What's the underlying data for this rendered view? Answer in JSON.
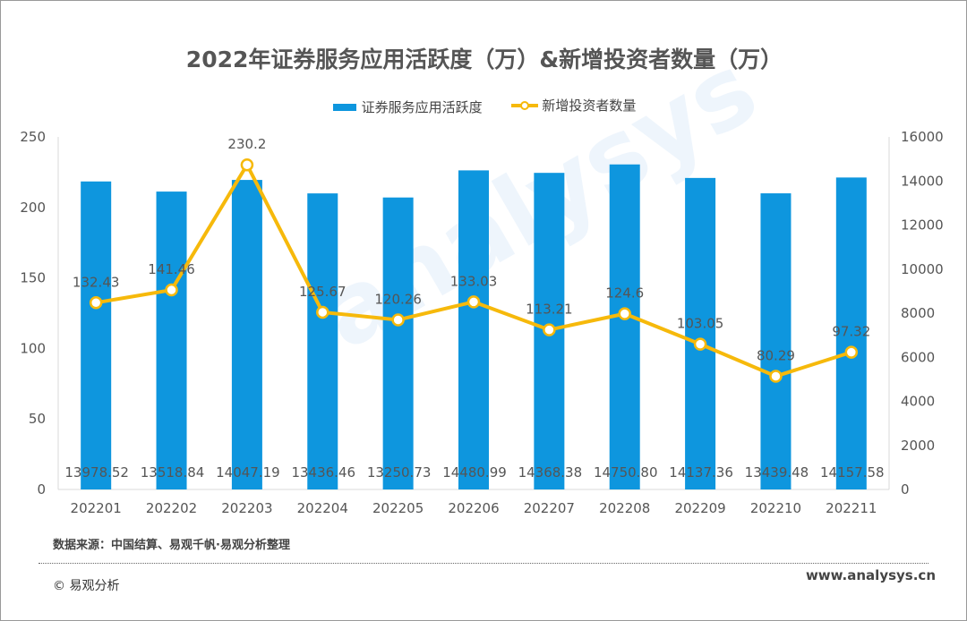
{
  "title": "2022年证券服务应用活跃度（万）&新增投资者数量（万）",
  "legend": {
    "bar": "证券服务应用活跃度",
    "line": "新增投资者数量"
  },
  "watermark": "analysys 易观分析",
  "source": "数据来源：中国结算、易观千帆·易观分析整理",
  "copyright": "© 易观分析",
  "site": "www.analysys.cn",
  "colors": {
    "bar": "#0E96DE",
    "line": "#F6B90B",
    "axis": "#D9D9D9"
  },
  "chart_data": {
    "type": "bar+line",
    "categories": [
      "202201",
      "202202",
      "202203",
      "202204",
      "202205",
      "202206",
      "202207",
      "202208",
      "202209",
      "202210",
      "202211"
    ],
    "series": [
      {
        "name": "证券服务应用活跃度",
        "type": "bar",
        "axis": "right",
        "values": [
          13978.52,
          13518.84,
          14047.19,
          13436.46,
          13250.73,
          14480.99,
          14368.38,
          14750.8,
          14137.36,
          13439.48,
          14157.58
        ]
      },
      {
        "name": "新增投资者数量",
        "type": "line",
        "axis": "left",
        "values": [
          132.43,
          141.46,
          230.2,
          125.67,
          120.26,
          133.03,
          113.21,
          124.6,
          103.05,
          80.29,
          97.32
        ]
      }
    ],
    "bar_labels": [
      "13978.52",
      "13518.84",
      "14047.19",
      "13436.46",
      "13250.73",
      "14480.99",
      "14368.38",
      "14750.80",
      "14137.36",
      "13439.48",
      "14157.58"
    ],
    "line_labels": [
      "132.43",
      "141.46",
      "230.2",
      "125.67",
      "120.26",
      "133.03",
      "113.21",
      "124.6",
      "103.05",
      "80.29",
      "97.32"
    ],
    "y_left": {
      "range": [
        0,
        250
      ],
      "ticks": [
        "0",
        "50",
        "100",
        "150",
        "200",
        "250"
      ]
    },
    "y_right": {
      "range": [
        0,
        16000
      ],
      "ticks": [
        "0",
        "2000",
        "4000",
        "6000",
        "8000",
        "10000",
        "12000",
        "14000",
        "16000"
      ]
    },
    "grid": false,
    "legend_position": "top"
  }
}
